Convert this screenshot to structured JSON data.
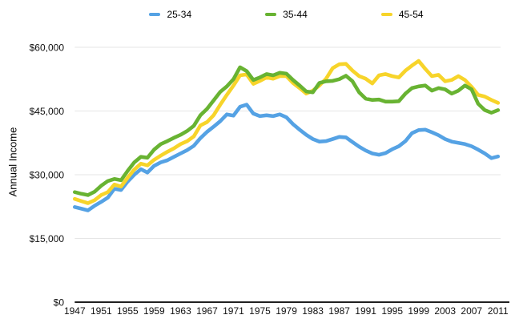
{
  "chart": {
    "background": "#ffffff",
    "text_color": "#111111",
    "grid_color": "#e6e6e6",
    "axis_color": "#000000"
  },
  "chart_data": {
    "type": "line",
    "title": "",
    "xlabel": "",
    "ylabel": "Annual Income",
    "grid": "horizontal",
    "legend_position": "top",
    "x_start": 1947,
    "x_end": 2011,
    "x_step": 1,
    "x_tick_labels": [
      "1947",
      "1951",
      "1955",
      "1959",
      "1963",
      "1967",
      "1971",
      "1975",
      "1979",
      "1983",
      "1987",
      "1991",
      "1995",
      "1999",
      "2003",
      "2007",
      "2011"
    ],
    "y_ticks": [
      0,
      15000,
      30000,
      45000,
      60000
    ],
    "y_tick_labels": [
      "$0",
      "$15,000",
      "$30,000",
      "$45,000",
      "$60,000"
    ],
    "ylim": [
      0,
      60000
    ],
    "series": [
      {
        "name": "25-34",
        "color": "#55a2e4",
        "values": [
          22400,
          22000,
          21600,
          22700,
          23600,
          24600,
          26700,
          26400,
          28400,
          30000,
          31300,
          30500,
          32100,
          32900,
          33400,
          34200,
          35000,
          35800,
          36800,
          38600,
          40100,
          41300,
          42600,
          44200,
          43900,
          46000,
          46500,
          44400,
          43800,
          44000,
          43800,
          44200,
          43500,
          41900,
          40600,
          39400,
          38400,
          37800,
          37900,
          38400,
          38900,
          38800,
          37700,
          36600,
          35700,
          35000,
          34700,
          35100,
          36000,
          36700,
          37900,
          39800,
          40500,
          40600,
          40000,
          39300,
          38400,
          37800,
          37500,
          37200,
          36700,
          35900,
          35000,
          33900,
          34300
        ]
      },
      {
        "name": "35-44",
        "color": "#68b332",
        "values": [
          25900,
          25500,
          25200,
          26000,
          27400,
          28500,
          29000,
          28700,
          30900,
          32900,
          34200,
          34000,
          35900,
          37200,
          37900,
          38700,
          39400,
          40300,
          41500,
          44000,
          45500,
          47500,
          49500,
          50800,
          52500,
          55300,
          54400,
          52300,
          52900,
          53700,
          53400,
          54000,
          53800,
          52300,
          51000,
          49600,
          49400,
          51600,
          52000,
          52100,
          52500,
          53300,
          52000,
          49400,
          47900,
          47600,
          47700,
          47200,
          47200,
          47300,
          49100,
          50400,
          50800,
          51000,
          49800,
          50400,
          50100,
          49100,
          49800,
          51000,
          50100,
          46700,
          45200,
          44600,
          45200
        ]
      },
      {
        "name": "45-54",
        "color": "#f7d42a",
        "values": [
          24300,
          23800,
          23300,
          24000,
          25200,
          25900,
          27700,
          27200,
          29300,
          31200,
          32600,
          32200,
          33500,
          34500,
          35400,
          36200,
          37200,
          37900,
          39000,
          41600,
          42400,
          44000,
          46500,
          48800,
          51000,
          53400,
          53600,
          51400,
          52100,
          52900,
          52600,
          53200,
          53200,
          51600,
          50400,
          49100,
          49800,
          51000,
          52600,
          55100,
          56000,
          56100,
          54500,
          53200,
          52600,
          51500,
          53400,
          53700,
          53200,
          52900,
          54500,
          55700,
          56800,
          54900,
          53200,
          53500,
          52000,
          52300,
          53200,
          52300,
          50700,
          48800,
          48400,
          47600,
          46900
        ]
      }
    ]
  }
}
